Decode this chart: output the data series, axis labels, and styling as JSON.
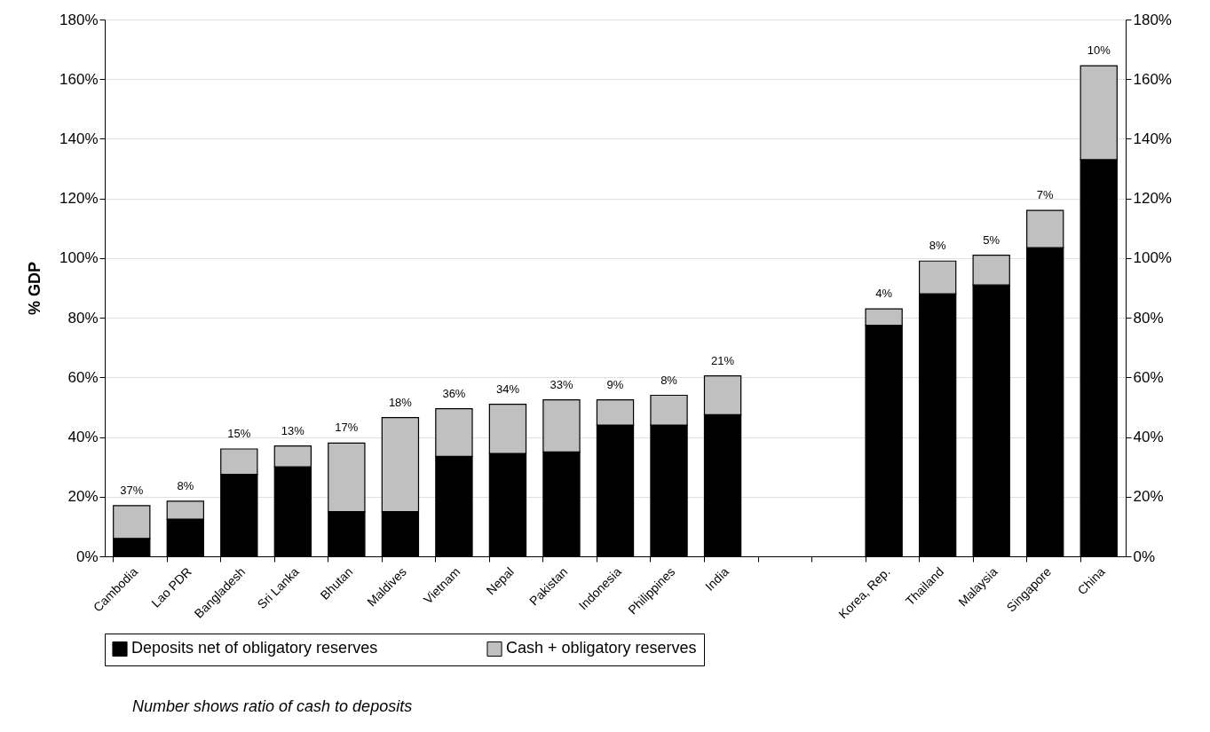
{
  "chart_data": {
    "type": "bar",
    "stacked": true,
    "ylabel": "% GDP",
    "categories": [
      "Cambodia",
      "Lao PDR",
      "Bangladesh",
      "Sri Lanka",
      "Bhutan",
      "Maldives",
      "Vietnam",
      "Nepal",
      "Pakistan",
      "Indonesia",
      "Philippines",
      "India",
      null,
      null,
      "Korea, Rep.",
      "Thailand",
      "Malaysia",
      "Singapore",
      "China"
    ],
    "series": [
      {
        "name": "Deposits net of obligatory reserves",
        "color": "#000000",
        "values": [
          6,
          12.5,
          27.5,
          30,
          15,
          15,
          33.5,
          34.5,
          35,
          44,
          44,
          47.5,
          null,
          null,
          77.5,
          88,
          91,
          103.5,
          133
        ]
      },
      {
        "name": "Cash + obligatory reserves",
        "color": "#c0c0c0",
        "values": [
          11,
          6,
          8.5,
          7,
          23,
          31.5,
          16,
          16.5,
          17.5,
          8.5,
          10,
          13,
          null,
          null,
          5.5,
          11,
          10,
          12.5,
          31.5
        ]
      }
    ],
    "ylim": [
      0,
      180
    ],
    "yticks": [
      {
        "value": 0,
        "label": "0%"
      },
      {
        "value": 20,
        "label": "20%"
      },
      {
        "value": 40,
        "label": "40%"
      },
      {
        "value": 60,
        "label": "60%"
      },
      {
        "value": 80,
        "label": "80%"
      },
      {
        "value": 100,
        "label": "100%"
      },
      {
        "value": 120,
        "label": "120%"
      },
      {
        "value": 140,
        "label": "140%"
      },
      {
        "value": 160,
        "label": "160%"
      },
      {
        "value": 180,
        "label": "180%"
      }
    ],
    "y2lim": [
      0,
      180
    ],
    "y2ticks": [
      {
        "value": 0,
        "label": "0%"
      },
      {
        "value": 20,
        "label": "20%"
      },
      {
        "value": 40,
        "label": "40%"
      },
      {
        "value": 60,
        "label": "60%"
      },
      {
        "value": 80,
        "label": "80%"
      },
      {
        "value": 100,
        "label": "100%"
      },
      {
        "value": 120,
        "label": "120%"
      },
      {
        "value": 140,
        "label": "140%"
      },
      {
        "value": 160,
        "label": "160%"
      },
      {
        "value": 180,
        "label": "180%"
      }
    ],
    "grid": "y",
    "legend": "bottom",
    "annotations": [
      {
        "text": "37%",
        "x": "Cambodia",
        "y": 17
      },
      {
        "text": "8%",
        "x": "Lao PDR",
        "y": 18.5
      },
      {
        "text": "15%",
        "x": "Bangladesh",
        "y": 36
      },
      {
        "text": "13%",
        "x": "Sri Lanka",
        "y": 37
      },
      {
        "text": "17%",
        "x": "Bhutan",
        "y": 38
      },
      {
        "text": "18%",
        "x": "Maldives",
        "y": 46.5
      },
      {
        "text": "36%",
        "x": "Vietnam",
        "y": 49.5
      },
      {
        "text": "34%",
        "x": "Nepal",
        "y": 51
      },
      {
        "text": "33%",
        "x": "Pakistan",
        "y": 52.5
      },
      {
        "text": "9%",
        "x": "Indonesia",
        "y": 52.5
      },
      {
        "text": "8%",
        "x": "Philippines",
        "y": 54
      },
      {
        "text": "21%",
        "x": "India",
        "y": 60.5
      },
      {
        "text": "4%",
        "x": "Korea, Rep.",
        "y": 83
      },
      {
        "text": "8%",
        "x": "Thailand",
        "y": 99
      },
      {
        "text": "5%",
        "x": "Malaysia",
        "y": 101
      },
      {
        "text": "7%",
        "x": "Singapore",
        "y": 116
      },
      {
        "text": "10%",
        "x": "China",
        "y": 164.5
      },
      "Number shows ratio of cash to deposits"
    ]
  }
}
